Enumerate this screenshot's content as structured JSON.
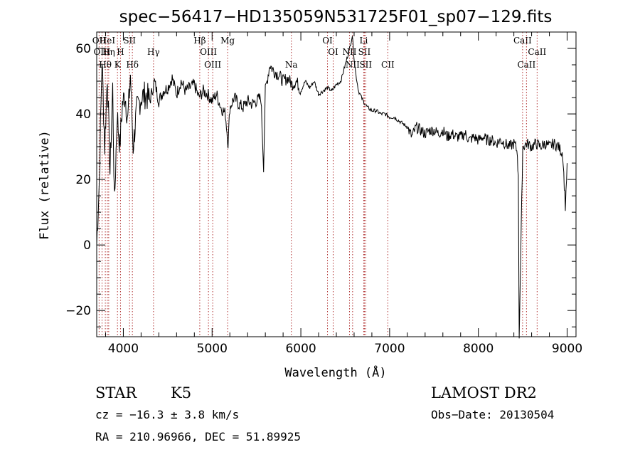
{
  "chart_data": {
    "type": "line",
    "title": "spec−56417−HD135059N531725F01_sp07−129.fits",
    "xlabel": "Wavelength (Å)",
    "ylabel": "Flux (relative)",
    "xlim": [
      3700,
      9100
    ],
    "ylim": [
      -28,
      65
    ],
    "x_ticks": [
      4000,
      5000,
      6000,
      7000,
      8000,
      9000
    ],
    "y_ticks": [
      -20,
      0,
      20,
      40,
      60
    ],
    "y_tick_labels": [
      "−20",
      "0",
      "20",
      "40",
      "60"
    ],
    "grid": false,
    "series": [
      {
        "x": [
          3700,
          3730,
          3760,
          3790,
          3820,
          3850,
          3880,
          3900,
          3930,
          3960,
          3990,
          4020,
          4050,
          4080,
          4110,
          4150,
          4200,
          4250,
          4300,
          4350,
          4400,
          4450,
          4500,
          4550,
          4600,
          4650,
          4700,
          4750,
          4800,
          4850,
          4900,
          4950,
          5000,
          5050,
          5100,
          5150,
          5180,
          5200,
          5250,
          5300,
          5350,
          5400,
          5450,
          5500,
          5550,
          5580,
          5600,
          5650,
          5700,
          5750,
          5800,
          5850,
          5900,
          5950,
          6000,
          6050,
          6100,
          6150,
          6200,
          6250,
          6300,
          6350,
          6400,
          6450,
          6500,
          6550,
          6580,
          6600,
          6620,
          6650,
          6700,
          6750,
          6800,
          6850,
          6900,
          6950,
          7000,
          7050,
          7100,
          7150,
          7200,
          7250,
          7300,
          7350,
          7400,
          7450,
          7500,
          7550,
          7600,
          7650,
          7700,
          7750,
          7800,
          7850,
          7900,
          7950,
          8000,
          8050,
          8100,
          8150,
          8200,
          8250,
          8300,
          8350,
          8400,
          8420,
          8440,
          8450,
          8460,
          8500,
          8550,
          8600,
          8650,
          8700,
          8750,
          8800,
          8850,
          8900,
          8950,
          8980,
          9000
        ],
        "y": [
          0,
          20,
          57,
          30,
          52,
          22,
          48,
          12,
          40,
          30,
          43,
          46,
          38,
          52,
          30,
          41,
          45,
          46,
          44,
          50,
          44,
          47,
          48,
          51,
          46,
          50,
          47,
          48,
          49,
          45,
          47,
          46,
          44,
          46,
          42,
          40,
          31,
          42,
          45,
          43,
          42,
          44,
          43,
          44,
          45,
          24,
          47,
          55,
          53,
          52,
          50,
          51,
          49,
          50,
          47,
          50,
          48,
          50,
          46,
          47,
          48,
          47,
          49,
          50,
          55,
          60,
          64,
          57,
          52,
          47,
          44,
          42,
          41,
          41,
          40,
          40,
          39,
          39,
          38,
          37,
          36,
          33,
          36,
          35,
          34,
          35,
          35,
          34,
          35,
          33,
          34,
          33,
          33,
          34,
          32,
          33,
          32,
          33,
          32,
          32,
          31,
          32,
          31,
          30,
          31,
          30,
          28,
          20,
          -28,
          30,
          31,
          30,
          31,
          30,
          31,
          30,
          31,
          30,
          28,
          12,
          25
        ]
      }
    ],
    "line_markers": [
      {
        "label": "OII",
        "x": 3727,
        "row": 0
      },
      {
        "label": "HeI",
        "x": 3820,
        "row": 0
      },
      {
        "label": "SII",
        "x": 4070,
        "row": 0
      },
      {
        "label": "Hβ",
        "x": 4861,
        "row": 0
      },
      {
        "label": "Mg",
        "x": 5175,
        "row": 0
      },
      {
        "label": "OI",
        "x": 6300,
        "row": 0
      },
      {
        "label": "Li",
        "x": 6708,
        "row": 0
      },
      {
        "label": "CaII",
        "x": 8498,
        "row": 0
      },
      {
        "label": "OIII",
        "x": 3760,
        "row": 1
      },
      {
        "label": "Hη",
        "x": 3835,
        "row": 1
      },
      {
        "label": "H",
        "x": 3968,
        "row": 1
      },
      {
        "label": "Hγ",
        "x": 4340,
        "row": 1
      },
      {
        "label": "OIII",
        "x": 4959,
        "row": 1
      },
      {
        "label": "OI",
        "x": 6364,
        "row": 1
      },
      {
        "label": "NII",
        "x": 6548,
        "row": 1
      },
      {
        "label": "SII",
        "x": 6716,
        "row": 1
      },
      {
        "label": "CaII",
        "x": 8662,
        "row": 1
      },
      {
        "label": "Hθ",
        "x": 3797,
        "row": 2
      },
      {
        "label": "K",
        "x": 3934,
        "row": 2
      },
      {
        "label": "Hδ",
        "x": 4102,
        "row": 2
      },
      {
        "label": "OIII",
        "x": 5007,
        "row": 2
      },
      {
        "label": "Na",
        "x": 5893,
        "row": 2
      },
      {
        "label": "NII",
        "x": 6583,
        "row": 2
      },
      {
        "label": "SII",
        "x": 6731,
        "row": 2
      },
      {
        "label": "CII",
        "x": 6980,
        "row": 2
      },
      {
        "label": "CaII",
        "x": 8542,
        "row": 2
      }
    ]
  },
  "info": {
    "class": "STAR",
    "subclass": "K5",
    "survey": "LAMOST DR2",
    "cz": "cz = −16.3 ± 3.8 km/s",
    "obs_date": "Obs−Date: 20130504",
    "radec": "RA = 210.96966, DEC =  51.89925"
  }
}
